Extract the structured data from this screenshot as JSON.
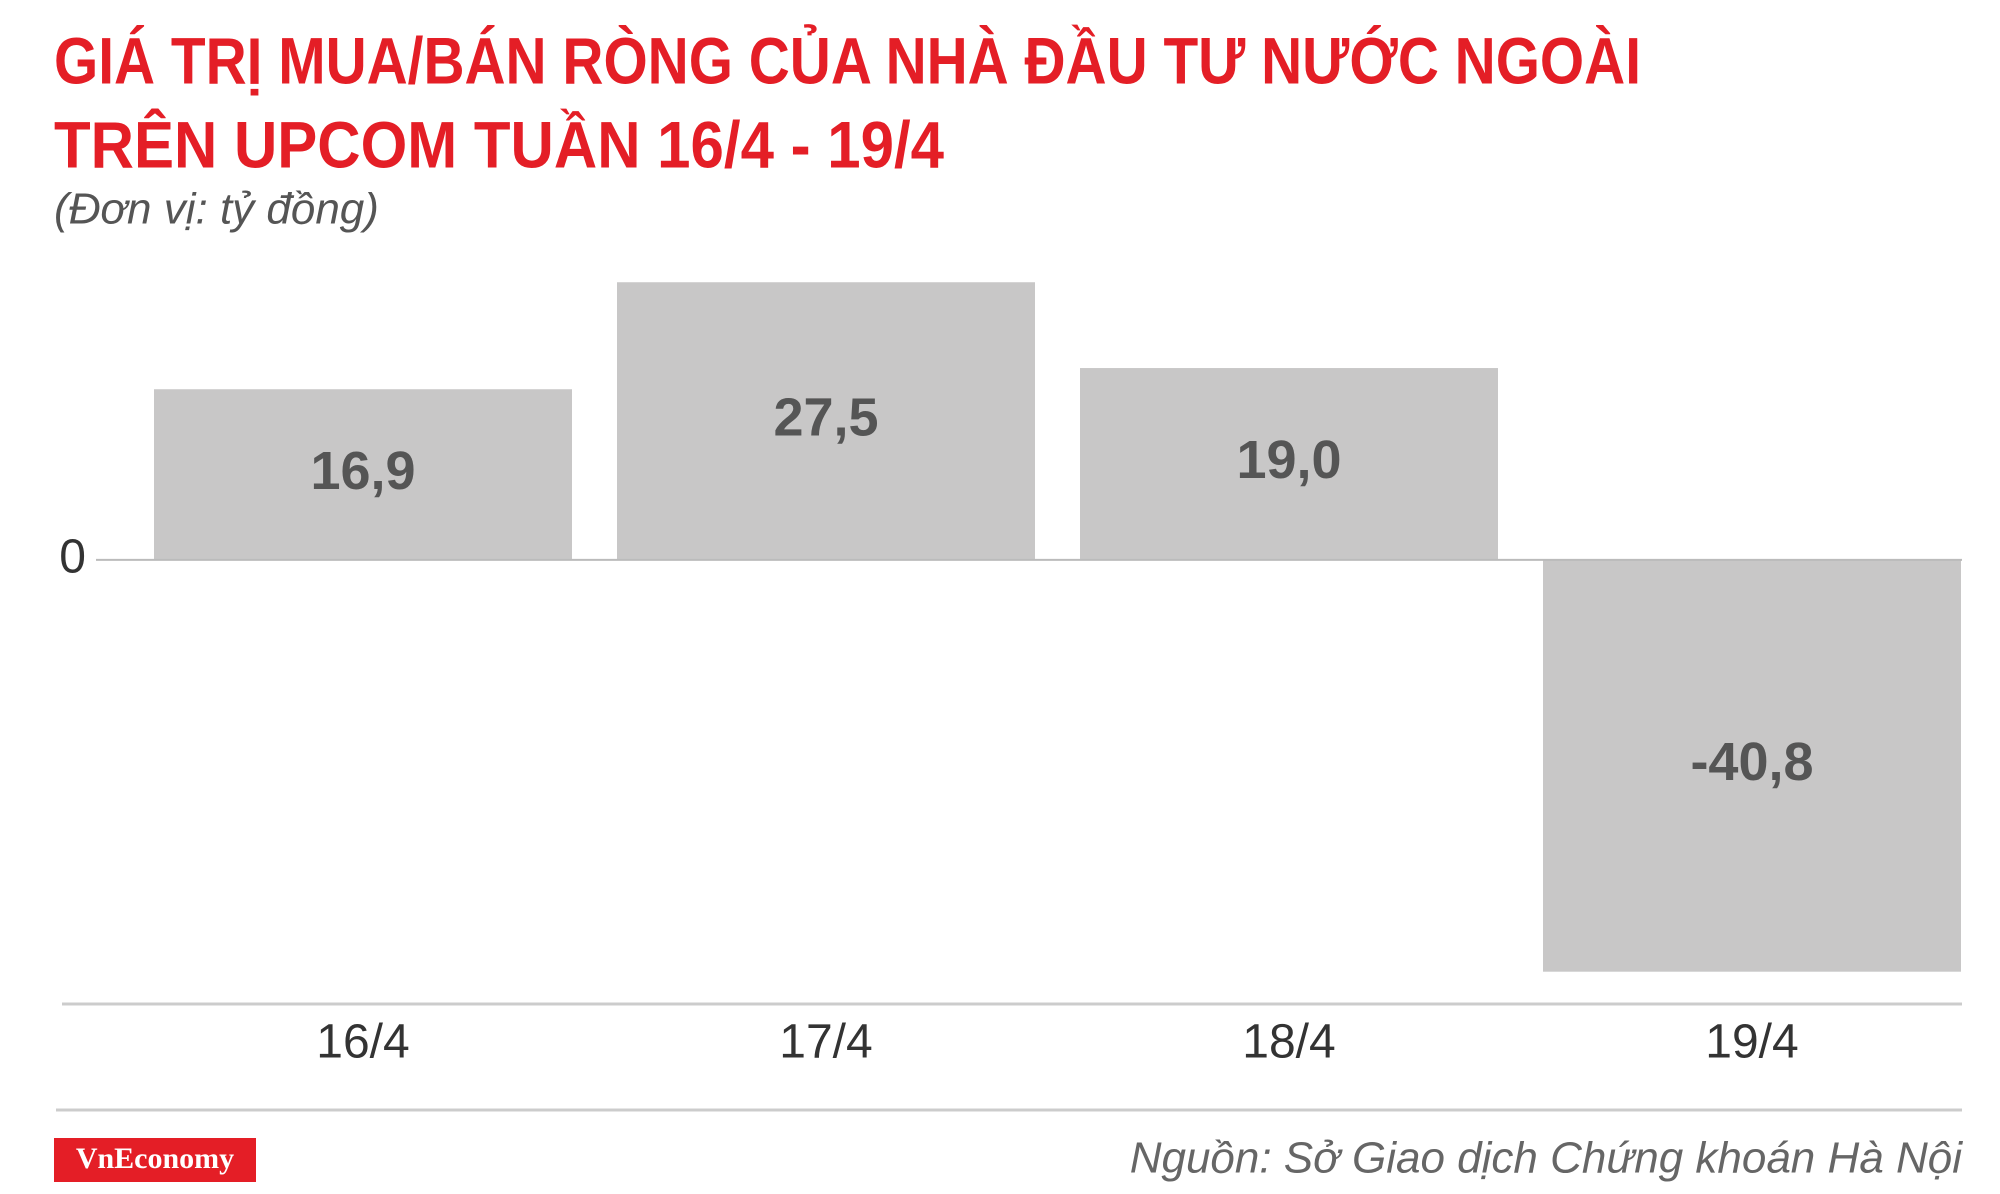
{
  "chart_data": {
    "type": "bar",
    "title": [
      "GIÁ TRỊ MUA/BÁN RÒNG CỦA NHÀ ĐẦU TƯ NƯỚC NGOÀI",
      "TRÊN UPCOM TUẦN 16/4 - 19/4"
    ],
    "subtitle": "(Đơn vị: tỷ đồng)",
    "categories": [
      "16/4",
      "17/4",
      "18/4",
      "19/4"
    ],
    "values": [
      16.9,
      27.5,
      19.0,
      -40.8
    ],
    "value_labels": [
      "16,9",
      "27,5",
      "19,0",
      "-40,8"
    ],
    "color": "#c8c7c7",
    "ylim": [
      -44,
      30
    ],
    "yticks": [
      0
    ],
    "grid": false,
    "logo": "VnEconomy",
    "source": "Nguồn: Sở Giao dịch Chứng khoán Hà Nội"
  }
}
